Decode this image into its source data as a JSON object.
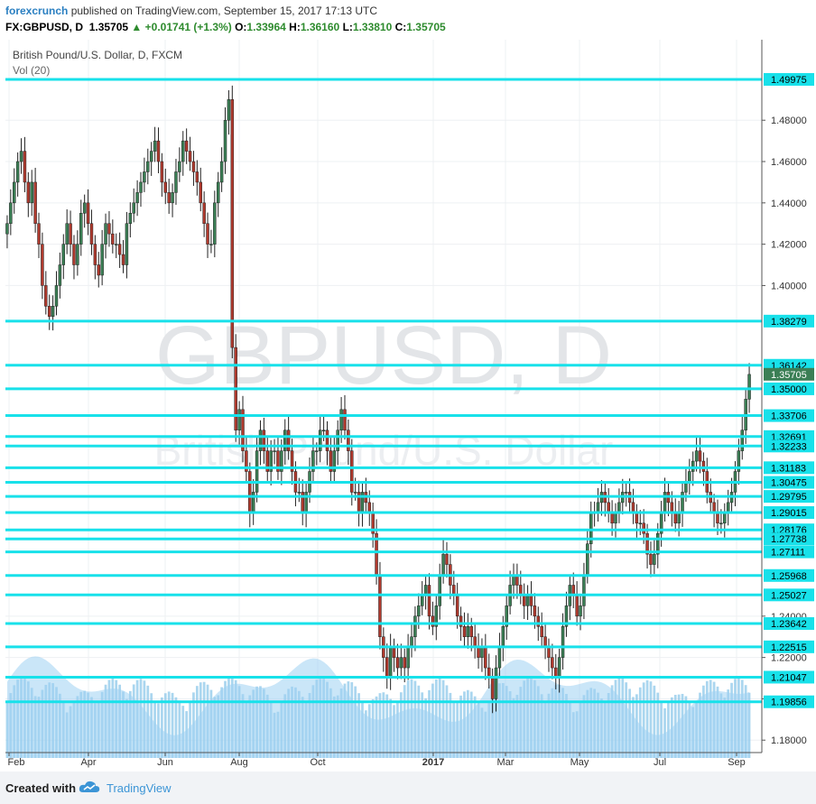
{
  "header": {
    "author": "forexcrunch",
    "published": "published on TradingView.com, September 15, 2017 17:13 UTC",
    "symbol": "FX:GBPUSD, D",
    "last": "1.35705",
    "change": "+0.01741 (+1.3%)",
    "o_label": "O:",
    "o": "1.33964",
    "h_label": "H:",
    "h": "1.36160",
    "l_label": "L:",
    "l": "1.33810",
    "c_label": "C:",
    "c": "1.35705"
  },
  "footer": {
    "created": "Created with",
    "brand": "TradingView"
  },
  "colors": {
    "up": "#3b7f55",
    "down": "#b03a2e",
    "level": "#18e1ea",
    "volume": "#8ec8ea",
    "grid": "#eef0f3"
  },
  "chart_data": {
    "type": "candlestick",
    "title": "British Pound/U.S. Dollar, D, FXCM",
    "subtitle": "Vol (20)",
    "watermark": "GBPUSD, D",
    "watermark_sub": "British Pound/U.S. Dollar",
    "ylim": [
      1.17,
      1.51
    ],
    "ytick_labels": [
      "1.48000",
      "1.46000",
      "1.44000",
      "1.42000",
      "1.40000",
      "1.24000",
      "1.22000",
      "1.20000",
      "1.18000"
    ],
    "yticks": [
      1.48,
      1.46,
      1.44,
      1.42,
      1.4,
      1.24,
      1.22,
      1.2,
      1.18
    ],
    "xtick_labels": [
      "Feb",
      "Apr",
      "Jun",
      "Aug",
      "Oct",
      "2017",
      "Mar",
      "May",
      "Jul",
      "Sep"
    ],
    "last_price": 1.35705,
    "last_price_label": "1.35705",
    "levels": [
      {
        "value": 1.49975,
        "label": "1.49975"
      },
      {
        "value": 1.38279,
        "label": "1.38279"
      },
      {
        "value": 1.36142,
        "label": "1.36142"
      },
      {
        "value": 1.35,
        "label": "1.35000"
      },
      {
        "value": 1.33706,
        "label": "1.33706"
      },
      {
        "value": 1.32691,
        "label": "1.32691"
      },
      {
        "value": 1.32233,
        "label": "1.32233"
      },
      {
        "value": 1.31183,
        "label": "1.31183"
      },
      {
        "value": 1.30475,
        "label": "1.30475"
      },
      {
        "value": 1.29795,
        "label": "1.29795"
      },
      {
        "value": 1.29015,
        "label": "1.29015"
      },
      {
        "value": 1.28176,
        "label": "1.28176"
      },
      {
        "value": 1.27738,
        "label": "1.27738"
      },
      {
        "value": 1.27111,
        "label": "1.27111"
      },
      {
        "value": 1.25968,
        "label": "1.25968"
      },
      {
        "value": 1.25027,
        "label": "1.25027"
      },
      {
        "value": 1.23642,
        "label": "1.23642"
      },
      {
        "value": 1.22515,
        "label": "1.22515"
      },
      {
        "value": 1.21047,
        "label": "1.21047"
      },
      {
        "value": 1.19856,
        "label": "1.19856"
      }
    ],
    "closes": [
      1.43,
      1.44,
      1.45,
      1.46,
      1.465,
      1.45,
      1.44,
      1.45,
      1.43,
      1.42,
      1.4,
      1.39,
      1.385,
      1.39,
      1.4,
      1.41,
      1.42,
      1.43,
      1.42,
      1.41,
      1.42,
      1.435,
      1.44,
      1.43,
      1.42,
      1.41,
      1.405,
      1.42,
      1.43,
      1.425,
      1.42,
      1.42,
      1.415,
      1.41,
      1.43,
      1.435,
      1.44,
      1.445,
      1.45,
      1.455,
      1.46,
      1.465,
      1.47,
      1.46,
      1.45,
      1.445,
      1.44,
      1.445,
      1.455,
      1.46,
      1.47,
      1.465,
      1.46,
      1.455,
      1.45,
      1.44,
      1.43,
      1.42,
      1.42,
      1.44,
      1.45,
      1.46,
      1.48,
      1.49,
      1.37,
      1.33,
      1.34,
      1.32,
      1.31,
      1.29,
      1.3,
      1.32,
      1.33,
      1.32,
      1.31,
      1.32,
      1.32,
      1.31,
      1.32,
      1.33,
      1.32,
      1.31,
      1.3,
      1.3,
      1.29,
      1.3,
      1.31,
      1.32,
      1.32,
      1.33,
      1.33,
      1.32,
      1.31,
      1.32,
      1.33,
      1.34,
      1.33,
      1.32,
      1.3,
      1.3,
      1.29,
      1.3,
      1.295,
      1.29,
      1.28,
      1.26,
      1.23,
      1.22,
      1.21,
      1.225,
      1.22,
      1.215,
      1.22,
      1.215,
      1.225,
      1.23,
      1.24,
      1.245,
      1.25,
      1.255,
      1.24,
      1.235,
      1.245,
      1.26,
      1.27,
      1.265,
      1.255,
      1.25,
      1.24,
      1.235,
      1.23,
      1.235,
      1.23,
      1.225,
      1.22,
      1.225,
      1.215,
      1.21,
      1.2,
      1.215,
      1.225,
      1.235,
      1.245,
      1.255,
      1.26,
      1.255,
      1.25,
      1.245,
      1.25,
      1.245,
      1.24,
      1.235,
      1.23,
      1.225,
      1.22,
      1.215,
      1.21,
      1.22,
      1.235,
      1.245,
      1.255,
      1.25,
      1.24,
      1.245,
      1.26,
      1.275,
      1.29,
      1.29,
      1.295,
      1.3,
      1.295,
      1.29,
      1.285,
      1.29,
      1.295,
      1.3,
      1.3,
      1.295,
      1.29,
      1.285,
      1.285,
      1.28,
      1.27,
      1.265,
      1.27,
      1.28,
      1.29,
      1.3,
      1.295,
      1.29,
      1.285,
      1.29,
      1.3,
      1.305,
      1.31,
      1.315,
      1.32,
      1.315,
      1.31,
      1.3,
      1.295,
      1.29,
      1.285,
      1.285,
      1.29,
      1.295,
      1.3,
      1.31,
      1.32,
      1.33,
      1.345,
      1.357
    ]
  }
}
